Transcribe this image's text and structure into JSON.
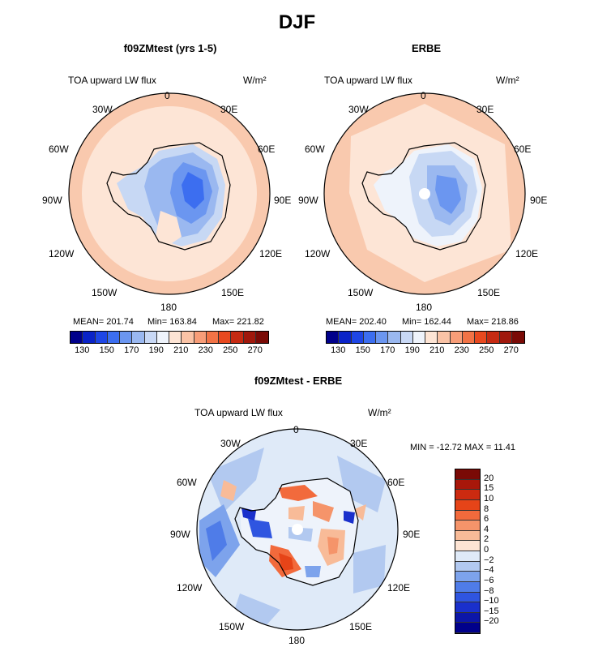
{
  "figure": {
    "title": "DJF"
  },
  "panels": [
    {
      "title": "f09ZMtest (yrs 1-5)",
      "var_label": "TOA upward LW flux",
      "units": "W/m²",
      "stats": {
        "mean": "MEAN= 201.74",
        "min": "Min= 163.84",
        "max": "Max= 221.82"
      }
    },
    {
      "title": "ERBE",
      "var_label": "TOA upward LW flux",
      "units": "W/m²",
      "stats": {
        "mean": "MEAN= 202.40",
        "min": "Min= 162.44",
        "max": "Max= 218.86"
      }
    },
    {
      "title": "f09ZMtest - ERBE",
      "var_label": "TOA upward LW flux",
      "units": "W/m²",
      "stats": {
        "minmax": "MIN = -12.72  MAX =   11.41"
      }
    }
  ],
  "lon_labels": {
    "0": "0",
    "30e": "30E",
    "60e": "60E",
    "90e": "90E",
    "120e": "120E",
    "150e": "150E",
    "180": "180",
    "150w": "150W",
    "120w": "120W",
    "90w": "90W",
    "60w": "60W",
    "30w": "30W"
  },
  "abs_colorbar": {
    "labels": [
      "130",
      "150",
      "170",
      "190",
      "210",
      "230",
      "250",
      "270"
    ],
    "colors": [
      "#00008b",
      "#0a23c8",
      "#1e46e6",
      "#3c6ef0",
      "#6b96f0",
      "#9ab8f0",
      "#c8d8f5",
      "#eef3fb",
      "#fde4d4",
      "#fac3a6",
      "#f79d78",
      "#f27346",
      "#e8491f",
      "#c62a12",
      "#a0180c",
      "#7a0a06"
    ]
  },
  "diff_colorbar": {
    "labels": [
      "20",
      "15",
      "10",
      "8",
      "6",
      "4",
      "2",
      "0",
      "−2",
      "−4",
      "−6",
      "−8",
      "−10",
      "−15",
      "−20"
    ],
    "colors": [
      "#7a0a06",
      "#a8170a",
      "#cc2a10",
      "#e64418",
      "#f26a3c",
      "#f5946a",
      "#f8bb98",
      "#fde4d4",
      "#dfeaf8",
      "#b2c9f0",
      "#7da3ec",
      "#4f7ce8",
      "#2f55e0",
      "#1a30cc",
      "#0c16a8",
      "#00008b"
    ]
  }
}
